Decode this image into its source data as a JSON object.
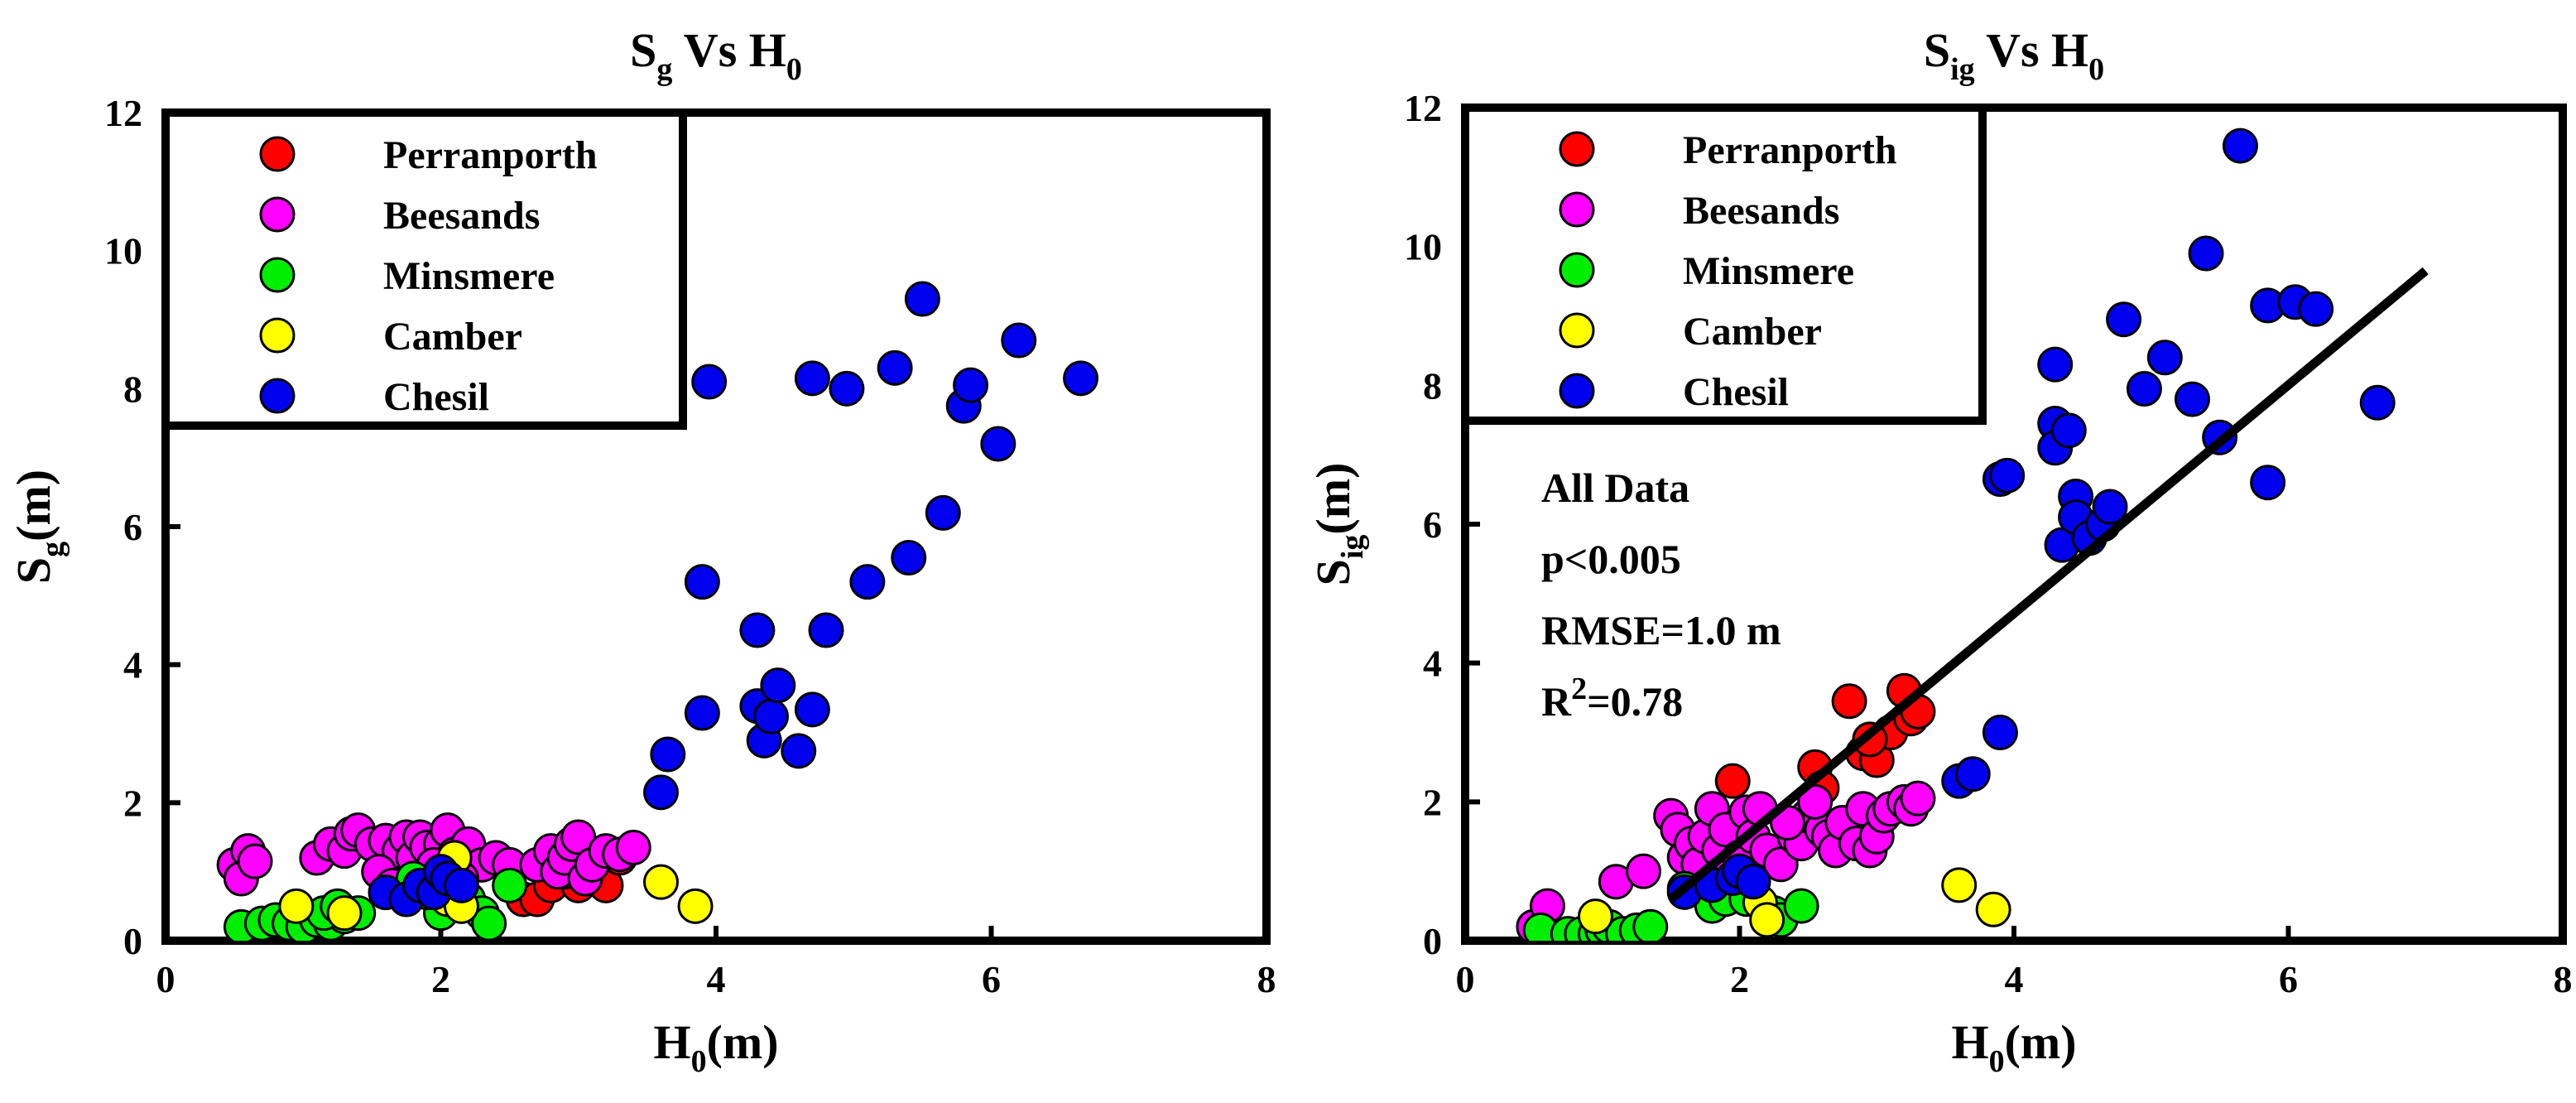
{
  "chart_data": [
    {
      "id": "left",
      "type": "scatter",
      "title": {
        "main": "S",
        "sub": "g",
        "mid": " Vs H",
        "sub2": "0"
      },
      "xlabel": {
        "main": "H",
        "sub": "0",
        "rest": "(m)"
      },
      "ylabel": {
        "main": "S",
        "sub": "g",
        "rest": "(m)"
      },
      "xlim": [
        0,
        8
      ],
      "ylim": [
        0,
        12
      ],
      "xticks": [
        0,
        2,
        4,
        6,
        8
      ],
      "yticks": [
        0,
        2,
        4,
        6,
        8,
        10,
        12
      ],
      "legend": {
        "position": "top-left"
      },
      "series": [
        {
          "name": "Perranporth",
          "color": "#ff0000",
          "points": [
            [
              2.6,
              0.6
            ],
            [
              2.7,
              0.6
            ],
            [
              2.8,
              0.8
            ],
            [
              3.0,
              0.8
            ],
            [
              3.1,
              0.9
            ],
            [
              3.2,
              0.8
            ],
            [
              2.9,
              1.0
            ],
            [
              3.3,
              1.2
            ]
          ]
        },
        {
          "name": "Beesands",
          "color": "#ff00ff",
          "points": [
            [
              0.5,
              1.1
            ],
            [
              0.55,
              0.9
            ],
            [
              0.6,
              1.3
            ],
            [
              0.65,
              1.15
            ],
            [
              1.1,
              1.2
            ],
            [
              1.2,
              1.4
            ],
            [
              1.3,
              1.3
            ],
            [
              1.35,
              1.55
            ],
            [
              1.4,
              1.6
            ],
            [
              1.5,
              1.4
            ],
            [
              1.6,
              1.45
            ],
            [
              1.7,
              1.3
            ],
            [
              1.75,
              1.5
            ],
            [
              1.8,
              1.2
            ],
            [
              1.85,
              1.5
            ],
            [
              1.9,
              1.35
            ],
            [
              2.0,
              1.4
            ],
            [
              2.05,
              1.6
            ],
            [
              2.1,
              1.25
            ],
            [
              2.2,
              1.4
            ],
            [
              2.3,
              1.1
            ],
            [
              2.4,
              1.2
            ],
            [
              2.5,
              1.1
            ],
            [
              2.7,
              1.1
            ],
            [
              2.8,
              1.3
            ],
            [
              2.85,
              1.0
            ],
            [
              2.9,
              1.2
            ],
            [
              2.95,
              1.4
            ],
            [
              3.0,
              1.5
            ],
            [
              3.05,
              0.9
            ],
            [
              3.1,
              1.1
            ],
            [
              3.2,
              1.3
            ],
            [
              3.3,
              1.25
            ],
            [
              3.4,
              1.35
            ],
            [
              1.55,
              1.0
            ],
            [
              1.65,
              0.8
            ],
            [
              1.95,
              1.1
            ],
            [
              2.15,
              0.9
            ]
          ]
        },
        {
          "name": "Minsmere",
          "color": "#00ee00",
          "points": [
            [
              0.55,
              0.2
            ],
            [
              0.7,
              0.25
            ],
            [
              0.8,
              0.3
            ],
            [
              0.9,
              0.25
            ],
            [
              1.0,
              0.2
            ],
            [
              1.1,
              0.3
            ],
            [
              1.2,
              0.25
            ],
            [
              1.3,
              0.35
            ],
            [
              1.15,
              0.4
            ],
            [
              1.25,
              0.5
            ],
            [
              1.4,
              0.4
            ],
            [
              2.0,
              0.4
            ],
            [
              2.2,
              0.6
            ],
            [
              2.3,
              0.4
            ],
            [
              2.35,
              0.25
            ],
            [
              2.5,
              0.8
            ],
            [
              1.8,
              0.9
            ],
            [
              1.9,
              0.7
            ]
          ]
        },
        {
          "name": "Camber",
          "color": "#ffff00",
          "points": [
            [
              0.95,
              0.5
            ],
            [
              1.3,
              0.4
            ],
            [
              2.05,
              0.6
            ],
            [
              2.1,
              1.2
            ],
            [
              2.15,
              0.5
            ],
            [
              3.6,
              0.85
            ],
            [
              3.85,
              0.5
            ]
          ]
        },
        {
          "name": "Chesil",
          "color": "#0000ee",
          "points": [
            [
              1.6,
              0.7
            ],
            [
              1.75,
              0.6
            ],
            [
              1.85,
              0.8
            ],
            [
              1.95,
              0.7
            ],
            [
              2.0,
              1.0
            ],
            [
              2.05,
              0.9
            ],
            [
              2.15,
              0.8
            ],
            [
              3.6,
              2.15
            ],
            [
              3.65,
              2.7
            ],
            [
              3.9,
              5.2
            ],
            [
              3.9,
              3.3
            ],
            [
              3.95,
              8.1
            ],
            [
              4.3,
              4.5
            ],
            [
              4.3,
              3.4
            ],
            [
              4.35,
              2.9
            ],
            [
              4.4,
              3.25
            ],
            [
              4.45,
              3.7
            ],
            [
              4.6,
              2.75
            ],
            [
              4.7,
              3.35
            ],
            [
              4.7,
              8.15
            ],
            [
              4.8,
              4.5
            ],
            [
              4.95,
              8.0
            ],
            [
              5.1,
              5.2
            ],
            [
              5.3,
              8.3
            ],
            [
              5.4,
              5.55
            ],
            [
              5.5,
              9.3
            ],
            [
              5.65,
              6.2
            ],
            [
              5.8,
              7.75
            ],
            [
              5.85,
              8.05
            ],
            [
              6.05,
              7.2
            ],
            [
              6.2,
              8.7
            ],
            [
              6.65,
              8.15
            ]
          ]
        }
      ]
    },
    {
      "id": "right",
      "type": "scatter",
      "title": {
        "main": "S",
        "sub": "ig",
        "mid": " Vs H",
        "sub2": "0"
      },
      "xlabel": {
        "main": "H",
        "sub": "0",
        "rest": "(m)"
      },
      "ylabel": {
        "main": "S",
        "sub": "ig",
        "rest": "(m)"
      },
      "xlim": [
        0,
        8
      ],
      "ylim": [
        0,
        12
      ],
      "xticks": [
        0,
        2,
        4,
        6,
        8
      ],
      "yticks": [
        0,
        2,
        4,
        6,
        8,
        10,
        12
      ],
      "legend": {
        "position": "top-left"
      },
      "fit_line": {
        "x": [
          1.5,
          7.0
        ],
        "y": [
          0.6,
          9.65
        ]
      },
      "annotations": {
        "line1": "All Data",
        "line2": "p<0.005",
        "line3": "RMSE=1.0 m",
        "line4_main": "R",
        "line4_sup": "2",
        "line4_rest": "=0.78"
      },
      "series": [
        {
          "name": "Perranporth",
          "color": "#ff0000",
          "points": [
            [
              1.95,
              2.3
            ],
            [
              2.55,
              2.5
            ],
            [
              2.6,
              2.2
            ],
            [
              2.8,
              3.45
            ],
            [
              2.9,
              2.7
            ],
            [
              3.0,
              2.6
            ],
            [
              3.1,
              3.0
            ],
            [
              3.2,
              3.6
            ],
            [
              3.25,
              3.2
            ],
            [
              3.3,
              3.3
            ],
            [
              2.95,
              2.9
            ]
          ]
        },
        {
          "name": "Beesands",
          "color": "#ff00ff",
          "points": [
            [
              0.5,
              0.2
            ],
            [
              0.6,
              0.5
            ],
            [
              1.1,
              0.85
            ],
            [
              1.3,
              1.0
            ],
            [
              1.5,
              1.8
            ],
            [
              1.55,
              1.6
            ],
            [
              1.6,
              1.2
            ],
            [
              1.65,
              1.4
            ],
            [
              1.7,
              1.1
            ],
            [
              1.75,
              1.5
            ],
            [
              1.8,
              1.9
            ],
            [
              1.85,
              1.3
            ],
            [
              1.9,
              1.6
            ],
            [
              1.95,
              1.05
            ],
            [
              2.0,
              1.2
            ],
            [
              2.05,
              1.85
            ],
            [
              2.1,
              1.5
            ],
            [
              2.15,
              1.9
            ],
            [
              2.2,
              1.3
            ],
            [
              2.3,
              1.1
            ],
            [
              2.4,
              1.5
            ],
            [
              2.45,
              1.4
            ],
            [
              2.5,
              1.8
            ],
            [
              2.6,
              1.6
            ],
            [
              2.65,
              1.5
            ],
            [
              2.7,
              1.3
            ],
            [
              2.75,
              1.7
            ],
            [
              2.85,
              1.4
            ],
            [
              2.9,
              1.9
            ],
            [
              2.95,
              1.3
            ],
            [
              3.0,
              1.5
            ],
            [
              3.05,
              1.8
            ],
            [
              3.1,
              1.9
            ],
            [
              3.2,
              2.0
            ],
            [
              3.25,
              1.9
            ],
            [
              3.3,
              2.05
            ],
            [
              2.55,
              2.0
            ],
            [
              2.35,
              1.7
            ]
          ]
        },
        {
          "name": "Minsmere",
          "color": "#00ee00",
          "points": [
            [
              0.55,
              0.15
            ],
            [
              0.75,
              0.1
            ],
            [
              0.85,
              0.1
            ],
            [
              0.95,
              0.1
            ],
            [
              1.0,
              0.15
            ],
            [
              1.05,
              0.2
            ],
            [
              1.15,
              0.1
            ],
            [
              1.25,
              0.15
            ],
            [
              1.35,
              0.2
            ],
            [
              1.6,
              0.75
            ],
            [
              1.8,
              0.5
            ],
            [
              1.9,
              0.6
            ],
            [
              2.05,
              0.6
            ],
            [
              2.25,
              0.4
            ],
            [
              2.3,
              0.3
            ],
            [
              2.45,
              0.5
            ]
          ]
        },
        {
          "name": "Camber",
          "color": "#ffff00",
          "points": [
            [
              0.95,
              0.35
            ],
            [
              2.15,
              0.55
            ],
            [
              2.2,
              0.3
            ],
            [
              3.6,
              0.8
            ],
            [
              3.85,
              0.45
            ]
          ]
        },
        {
          "name": "Chesil",
          "color": "#0000ee",
          "points": [
            [
              1.6,
              0.7
            ],
            [
              1.8,
              0.8
            ],
            [
              1.95,
              0.9
            ],
            [
              2.0,
              1.0
            ],
            [
              2.1,
              0.85
            ],
            [
              3.6,
              2.3
            ],
            [
              3.7,
              2.4
            ],
            [
              3.9,
              3.0
            ],
            [
              3.9,
              6.65
            ],
            [
              3.95,
              6.7
            ],
            [
              4.3,
              8.3
            ],
            [
              4.3,
              7.45
            ],
            [
              4.3,
              7.1
            ],
            [
              4.35,
              5.7
            ],
            [
              4.4,
              7.35
            ],
            [
              4.45,
              6.4
            ],
            [
              4.45,
              6.1
            ],
            [
              4.55,
              5.8
            ],
            [
              4.65,
              6.0
            ],
            [
              4.7,
              6.25
            ],
            [
              4.8,
              8.95
            ],
            [
              4.95,
              7.95
            ],
            [
              5.1,
              8.4
            ],
            [
              5.3,
              7.8
            ],
            [
              5.4,
              9.9
            ],
            [
              5.5,
              7.25
            ],
            [
              5.65,
              11.45
            ],
            [
              5.85,
              6.6
            ],
            [
              5.85,
              9.15
            ],
            [
              6.05,
              9.2
            ],
            [
              6.2,
              9.1
            ],
            [
              6.65,
              7.75
            ]
          ]
        }
      ]
    }
  ]
}
